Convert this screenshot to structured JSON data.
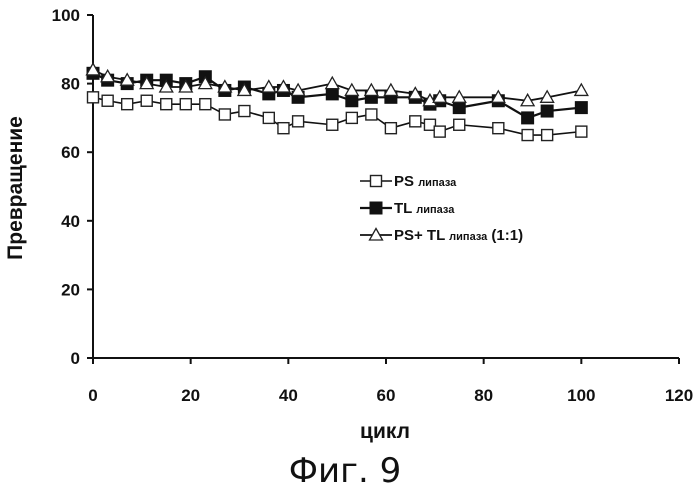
{
  "caption": "Фиг. 9",
  "chart_data": {
    "type": "line",
    "xlabel": "цикл",
    "ylabel": "Превращение",
    "xlim": [
      0,
      120
    ],
    "ylim": [
      0,
      100
    ],
    "xticks": [
      0,
      20,
      40,
      60,
      80,
      100,
      120
    ],
    "yticks": [
      0,
      20,
      40,
      60,
      80,
      100
    ],
    "grid": false,
    "legend_position": "center-right",
    "series": [
      {
        "legend_main": "PS ",
        "legend_small": "липаза",
        "legend_extra": "",
        "marker": "square-open",
        "x": [
          0,
          3,
          7,
          11,
          15,
          19,
          23,
          27,
          31,
          36,
          39,
          42,
          49,
          53,
          57,
          61,
          66,
          69,
          71,
          75,
          83,
          89,
          93,
          100
        ],
        "y": [
          76,
          75,
          74,
          75,
          74,
          74,
          74,
          71,
          72,
          70,
          67,
          69,
          68,
          70,
          71,
          67,
          69,
          68,
          66,
          68,
          67,
          65,
          65,
          66
        ]
      },
      {
        "legend_main": "TL ",
        "legend_small": "липаза",
        "legend_extra": "",
        "marker": "square-filled",
        "x": [
          0,
          3,
          7,
          11,
          15,
          19,
          23,
          27,
          31,
          36,
          39,
          42,
          49,
          53,
          57,
          61,
          66,
          69,
          71,
          75,
          83,
          89,
          93,
          100
        ],
        "y": [
          83,
          81,
          80,
          81,
          81,
          80,
          82,
          78,
          79,
          77,
          78,
          76,
          77,
          75,
          76,
          76,
          76,
          74,
          75,
          73,
          75,
          70,
          72,
          73
        ]
      },
      {
        "legend_main": "PS+ TL ",
        "legend_small": "липаза",
        "legend_extra": " (1:1)",
        "marker": "triangle-open",
        "x": [
          0,
          3,
          7,
          11,
          15,
          19,
          23,
          27,
          31,
          36,
          39,
          42,
          49,
          53,
          57,
          61,
          66,
          69,
          71,
          75,
          83,
          89,
          93,
          100
        ],
        "y": [
          84,
          82,
          81,
          80,
          79,
          79,
          80,
          79,
          78,
          79,
          79,
          78,
          80,
          78,
          78,
          78,
          77,
          75,
          76,
          76,
          76,
          75,
          76,
          78
        ]
      }
    ]
  }
}
